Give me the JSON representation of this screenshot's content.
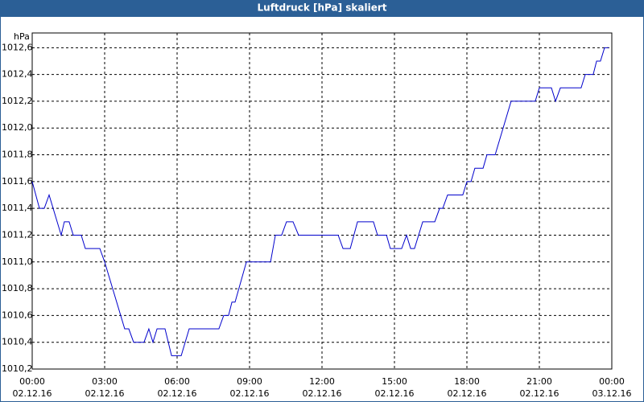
{
  "chart_data": {
    "type": "line",
    "title": "Luftdruck [hPa] skaliert",
    "y_label": "hPa",
    "x": [
      0,
      0.3,
      0.5,
      0.7,
      1.2,
      1.33,
      1.53,
      1.7,
      2.03,
      2.2,
      2.8,
      3,
      3.83,
      4,
      4.2,
      4.63,
      4.83,
      5,
      5.17,
      5.5,
      5.77,
      6.17,
      6.5,
      7.73,
      7.93,
      8.13,
      8.27,
      8.4,
      8.87,
      9.87,
      10.07,
      10.33,
      10.53,
      10.8,
      11.03,
      12.67,
      12.87,
      13.17,
      13.47,
      14.13,
      14.3,
      14.67,
      14.83,
      15.3,
      15.5,
      15.67,
      15.83,
      16.17,
      16.67,
      16.87,
      17,
      17.2,
      17.83,
      18,
      18.17,
      18.33,
      18.67,
      18.83,
      19.17,
      19.83,
      20.83,
      21,
      21.5,
      21.67,
      21.87,
      22.73,
      22.9,
      23.23,
      23.37,
      23.53,
      23.7,
      23.87
    ],
    "series": [
      {
        "name": "Luftdruck",
        "color": "#0000cc",
        "values": [
          1011.6,
          1011.4,
          1011.4,
          1011.5,
          1011.2,
          1011.3,
          1011.3,
          1011.2,
          1011.2,
          1011.1,
          1011.1,
          1011.0,
          1010.5,
          1010.5,
          1010.4,
          1010.4,
          1010.5,
          1010.4,
          1010.5,
          1010.5,
          1010.3,
          1010.3,
          1010.5,
          1010.5,
          1010.6,
          1010.6,
          1010.7,
          1010.7,
          1011.0,
          1011.0,
          1011.2,
          1011.2,
          1011.3,
          1011.3,
          1011.2,
          1011.2,
          1011.1,
          1011.1,
          1011.3,
          1011.3,
          1011.2,
          1011.2,
          1011.1,
          1011.1,
          1011.2,
          1011.1,
          1011.1,
          1011.3,
          1011.3,
          1011.4,
          1011.4,
          1011.5,
          1011.5,
          1011.6,
          1011.6,
          1011.7,
          1011.7,
          1011.8,
          1011.8,
          1012.2,
          1012.2,
          1012.3,
          1012.3,
          1012.2,
          1012.3,
          1012.3,
          1012.4,
          1012.4,
          1012.5,
          1012.5,
          1012.6,
          1012.6
        ]
      }
    ],
    "xlim": [
      0,
      24
    ],
    "xticks": [
      {
        "value": 0,
        "label": "00:00",
        "date": "02.12.16"
      },
      {
        "value": 3,
        "label": "03:00",
        "date": "02.12.16"
      },
      {
        "value": 6,
        "label": "06:00",
        "date": "02.12.16"
      },
      {
        "value": 9,
        "label": "09:00",
        "date": "02.12.16"
      },
      {
        "value": 12,
        "label": "12:00",
        "date": "02.12.16"
      },
      {
        "value": 15,
        "label": "15:00",
        "date": "02.12.16"
      },
      {
        "value": 18,
        "label": "18:00",
        "date": "02.12.16"
      },
      {
        "value": 21,
        "label": "21:00",
        "date": "02.12.16"
      },
      {
        "value": 24,
        "label": "00:00",
        "date": "03.12.16"
      }
    ],
    "ylim": [
      1010.2,
      1012.71
    ],
    "yticks": [
      {
        "value": 1010.2,
        "label": "1010,2"
      },
      {
        "value": 1010.4,
        "label": "1010,4"
      },
      {
        "value": 1010.6,
        "label": "1010,6"
      },
      {
        "value": 1010.8,
        "label": "1010,8"
      },
      {
        "value": 1011.0,
        "label": "1011,0"
      },
      {
        "value": 1011.2,
        "label": "1011,2"
      },
      {
        "value": 1011.4,
        "label": "1011,4"
      },
      {
        "value": 1011.6,
        "label": "1011,6"
      },
      {
        "value": 1011.8,
        "label": "1011,8"
      },
      {
        "value": 1012.0,
        "label": "1012,0"
      },
      {
        "value": 1012.2,
        "label": "1012,2"
      },
      {
        "value": 1012.4,
        "label": "1012,4"
      },
      {
        "value": 1012.6,
        "label": "1012,6"
      }
    ],
    "grid": true
  }
}
